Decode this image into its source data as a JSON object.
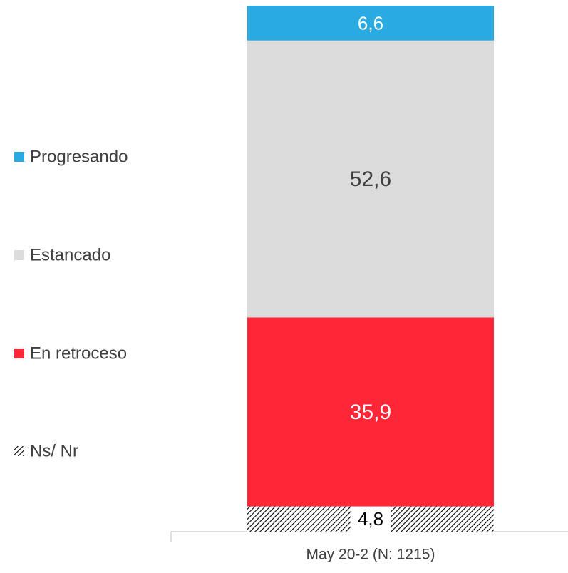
{
  "chart_data": {
    "type": "stacked_bar",
    "categories": [
      "May 20-2 (N: 1215)"
    ],
    "series": [
      {
        "name": "Progresando",
        "color": "#29abe2",
        "label_color": "#ffffff",
        "values": [
          6.6
        ],
        "value_labels": [
          "6,6"
        ]
      },
      {
        "name": "Estancado",
        "color": "#dcdcdc",
        "label_color": "#404040",
        "values": [
          52.6
        ],
        "value_labels": [
          "52,6"
        ]
      },
      {
        "name": "En retroceso",
        "color": "#fe2637",
        "label_color": "#ffffff",
        "values": [
          35.9
        ],
        "value_labels": [
          "35,9"
        ]
      },
      {
        "name": "Ns/ Nr",
        "color": "#000000",
        "pattern": "diagonal-hatch",
        "label_color": "#000000",
        "values": [
          4.8
        ],
        "value_labels": [
          "4,8"
        ]
      }
    ],
    "legend": "left"
  }
}
